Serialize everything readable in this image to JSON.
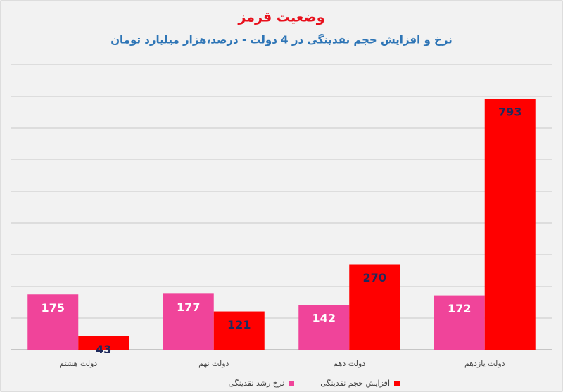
{
  "chart_data": {
    "type": "bar",
    "title": "وضعیت قرمز",
    "subtitle": "نرخ و افزایش حجم نقدینگی در 4 دولت - درصد،هزار میلیارد تومان",
    "categories": [
      "دولت هشتم",
      "دولت نهم",
      "دولت دهم",
      "دولت یازدهم"
    ],
    "series": [
      {
        "name": "نرخ رشد نقدینگی",
        "color": "#f0449a",
        "label_color": "#ffffff",
        "values": [
          175,
          177,
          142,
          172
        ]
      },
      {
        "name": "افزایش حجم نقدینگی",
        "color": "#ff0000",
        "label_color": "#1f2a5c",
        "values": [
          43,
          121,
          270,
          793
        ]
      }
    ],
    "ylim": [
      0,
      900
    ],
    "yticks": [
      0,
      100,
      200,
      300,
      400,
      500,
      600,
      700,
      800,
      900
    ],
    "grid": true
  }
}
